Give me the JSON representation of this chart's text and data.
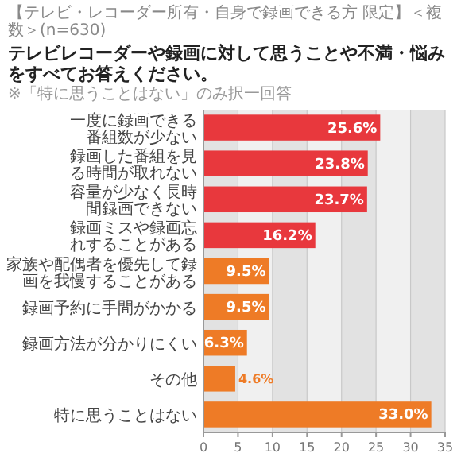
{
  "chart_data": {
    "type": "bar",
    "orientation": "horizontal",
    "subtitle": "【テレビ・レコーダー所有・自身で録画できる方 限定】＜複数＞(n=630)",
    "title": "テレビレコーダーや録画に対して思うことや不満・悩みをすべてお答えください。",
    "annotations": [
      "※「特に思うことはない」のみ択一回答"
    ],
    "categories": [
      "一度に録画できる番組数が少ない",
      "録画した番組を見る時間が取れない",
      "容量が少なく長時間録画できない",
      "録画ミスや録画忘れすることがある",
      "家族や配偶者を優先して録画を我慢することがある",
      "録画予約に手間がかかる",
      "録画方法が分かりにくい",
      "その他",
      "特に思うことはない"
    ],
    "values": [
      25.6,
      23.8,
      23.7,
      16.2,
      9.5,
      9.5,
      6.3,
      4.6,
      33.0
    ],
    "colors": [
      "#e8383d",
      "#e8383d",
      "#e8383d",
      "#e8383d",
      "#ee7b26",
      "#ee7b26",
      "#ee7b26",
      "#ee7b26",
      "#ee7b26"
    ],
    "value_labels": [
      "25.6%",
      "23.8%",
      "23.7%",
      "16.2%",
      "9.5%",
      "9.5%",
      "6.3%",
      "4.6%",
      "33.0%"
    ],
    "xlim": [
      0,
      35
    ],
    "xticks": [
      0,
      5,
      10,
      15,
      20,
      25,
      30,
      35
    ],
    "grid": "x"
  }
}
